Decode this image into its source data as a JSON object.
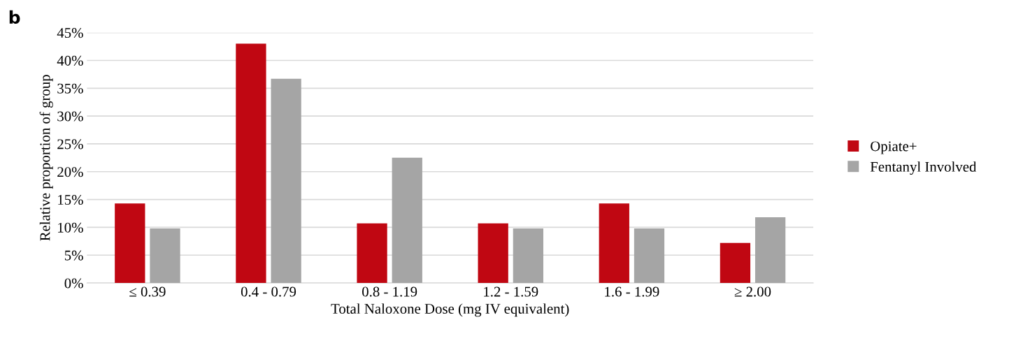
{
  "chart_data": {
    "type": "bar",
    "annotations": [
      "b"
    ],
    "xlabel": "Total Naloxone Dose (mg IV equivalent)",
    "ylabel": "Relative proportion of group",
    "categories": [
      "≤ 0.39",
      "0.4 - 0.79",
      "0.8 - 1.19",
      "1.2 - 1.59",
      "1.6 - 1.99",
      "≥ 2.00"
    ],
    "series": [
      {
        "name": "Opiate+",
        "color": "#c00712",
        "values": [
          14.3,
          43.0,
          10.7,
          10.7,
          14.3,
          7.2
        ]
      },
      {
        "name": "Fentanyl Involved",
        "color": "#a5a5a5",
        "values": [
          9.8,
          36.7,
          22.5,
          9.8,
          9.8,
          11.8
        ]
      }
    ],
    "ylim": [
      0,
      45
    ],
    "yticks": [
      {
        "value": 0,
        "label": "0%"
      },
      {
        "value": 5,
        "label": "5%"
      },
      {
        "value": 10,
        "label": "10%"
      },
      {
        "value": 15,
        "label": "15%"
      },
      {
        "value": 20,
        "label": "20%"
      },
      {
        "value": 25,
        "label": "25%"
      },
      {
        "value": 30,
        "label": "30%"
      },
      {
        "value": 35,
        "label": "35%"
      },
      {
        "value": 40,
        "label": "40%"
      },
      {
        "value": 45,
        "label": "45%"
      }
    ],
    "grid": "y",
    "legend": "right"
  }
}
